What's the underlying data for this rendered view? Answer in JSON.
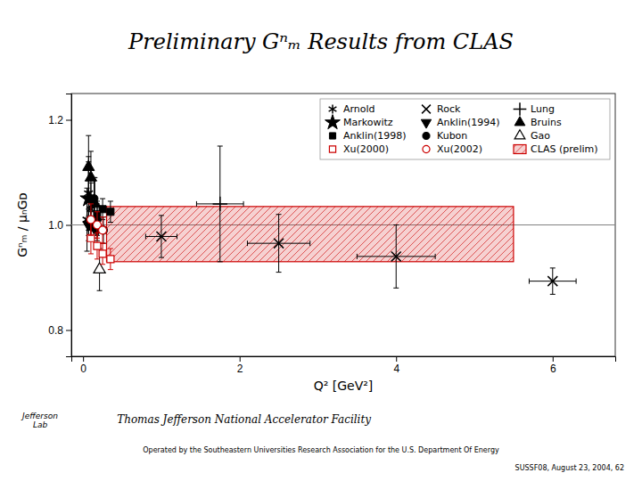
{
  "chart_data": {
    "type": "scatter",
    "title": "Preliminary Gⁿₘ Results from CLAS",
    "xlabel": "Q² [GeV²]",
    "ylabel": "Gⁿₘ / μₙGᴅ",
    "xlim": [
      -0.15,
      6.8
    ],
    "ylim": [
      0.75,
      1.25
    ],
    "xticks": [
      0,
      2,
      4,
      6
    ],
    "yticks": [
      0.8,
      {
        "value": 1.0,
        "label": "1.0"
      },
      1.2
    ],
    "grid": false,
    "legend": "upper right",
    "reference_line": {
      "value": 1.0,
      "color": "gray"
    },
    "series": [
      {
        "name": "Arnold",
        "color": "black",
        "marker": "asterisk",
        "x": [
          0.05,
          0.07,
          0.1
        ],
        "values": [
          1.01,
          1.06,
          1.03
        ],
        "xerr": [
          0.02,
          0.02,
          0.02
        ],
        "yerr": [
          0.06,
          0.07,
          0.05
        ]
      },
      {
        "name": "Rock",
        "color": "black",
        "marker": "x",
        "x": [
          1.0,
          2.5,
          4.0,
          6.0
        ],
        "values": [
          0.978,
          0.965,
          0.94,
          0.893
        ],
        "xerr": [
          0.2,
          0.4,
          0.5,
          0.3
        ],
        "yerr": [
          0.04,
          0.055,
          0.06,
          0.025
        ]
      },
      {
        "name": "Lung",
        "color": "black",
        "marker": "plus",
        "x": [
          1.75
        ],
        "values": [
          1.04
        ],
        "xerr": [
          0.3
        ],
        "yerr": [
          0.11
        ]
      },
      {
        "name": "Markowitz",
        "color": "black",
        "marker": "star",
        "x": [
          0.07
        ],
        "values": [
          1.05
        ],
        "xerr": [
          0.02
        ],
        "yerr": [
          0.07
        ]
      },
      {
        "name": "Anklin(1994)",
        "color": "black",
        "marker": "triangle-down",
        "x": [
          0.07,
          0.1,
          0.14,
          0.18
        ],
        "values": [
          1.0,
          1.0,
          0.995,
          0.99
        ],
        "yerr": [
          0.03,
          0.025,
          0.02,
          0.02
        ]
      },
      {
        "name": "Bruins",
        "color": "black",
        "marker": "triangle-up",
        "x": [
          0.07,
          0.1,
          0.15
        ],
        "values": [
          1.11,
          1.09,
          1.04
        ],
        "yerr": [
          0.06,
          0.05,
          0.05
        ]
      },
      {
        "name": "Anklin(1998)",
        "color": "black",
        "marker": "square",
        "x": [
          0.18,
          0.25,
          0.35
        ],
        "values": [
          1.02,
          1.03,
          1.025
        ],
        "yerr": [
          0.025,
          0.02,
          0.02
        ]
      },
      {
        "name": "Kubon",
        "color": "black",
        "marker": "circle",
        "x": [
          0.14,
          0.18,
          0.26
        ],
        "values": [
          1.05,
          1.01,
          0.99
        ],
        "yerr": [
          0.04,
          0.03,
          0.025
        ]
      },
      {
        "name": "Gao",
        "color": "black",
        "marker": "triangle-up-open",
        "x": [
          0.21
        ],
        "values": [
          0.915
        ],
        "yerr": [
          0.04
        ]
      },
      {
        "name": "Xu(2000)",
        "color": "#cc0000",
        "marker": "square-open",
        "x": [
          0.1,
          0.18,
          0.25,
          0.35
        ],
        "values": [
          0.975,
          0.96,
          0.945,
          0.935
        ],
        "yerr": [
          0.03,
          0.025,
          0.02,
          0.02
        ]
      },
      {
        "name": "Xu(2002)",
        "color": "#cc0000",
        "marker": "circle-open",
        "x": [
          0.1,
          0.18,
          0.25
        ],
        "values": [
          1.01,
          1.0,
          0.99
        ],
        "yerr": [
          0.03,
          0.025,
          0.025
        ]
      },
      {
        "name": "CLAS (prelim)",
        "type": "band",
        "color": "#cc0000",
        "xrange": [
          0.3,
          5.5
        ],
        "yrange": [
          0.93,
          1.035
        ]
      }
    ],
    "annotations": [
      "Thomas Jefferson National Accelerator Facility",
      "Operated by the Southeastern Universities Research Association for the U.S. Department Of Energy",
      "SUSSF08, August 23, 2004, 62",
      "Jefferson\n  Lab"
    ]
  }
}
